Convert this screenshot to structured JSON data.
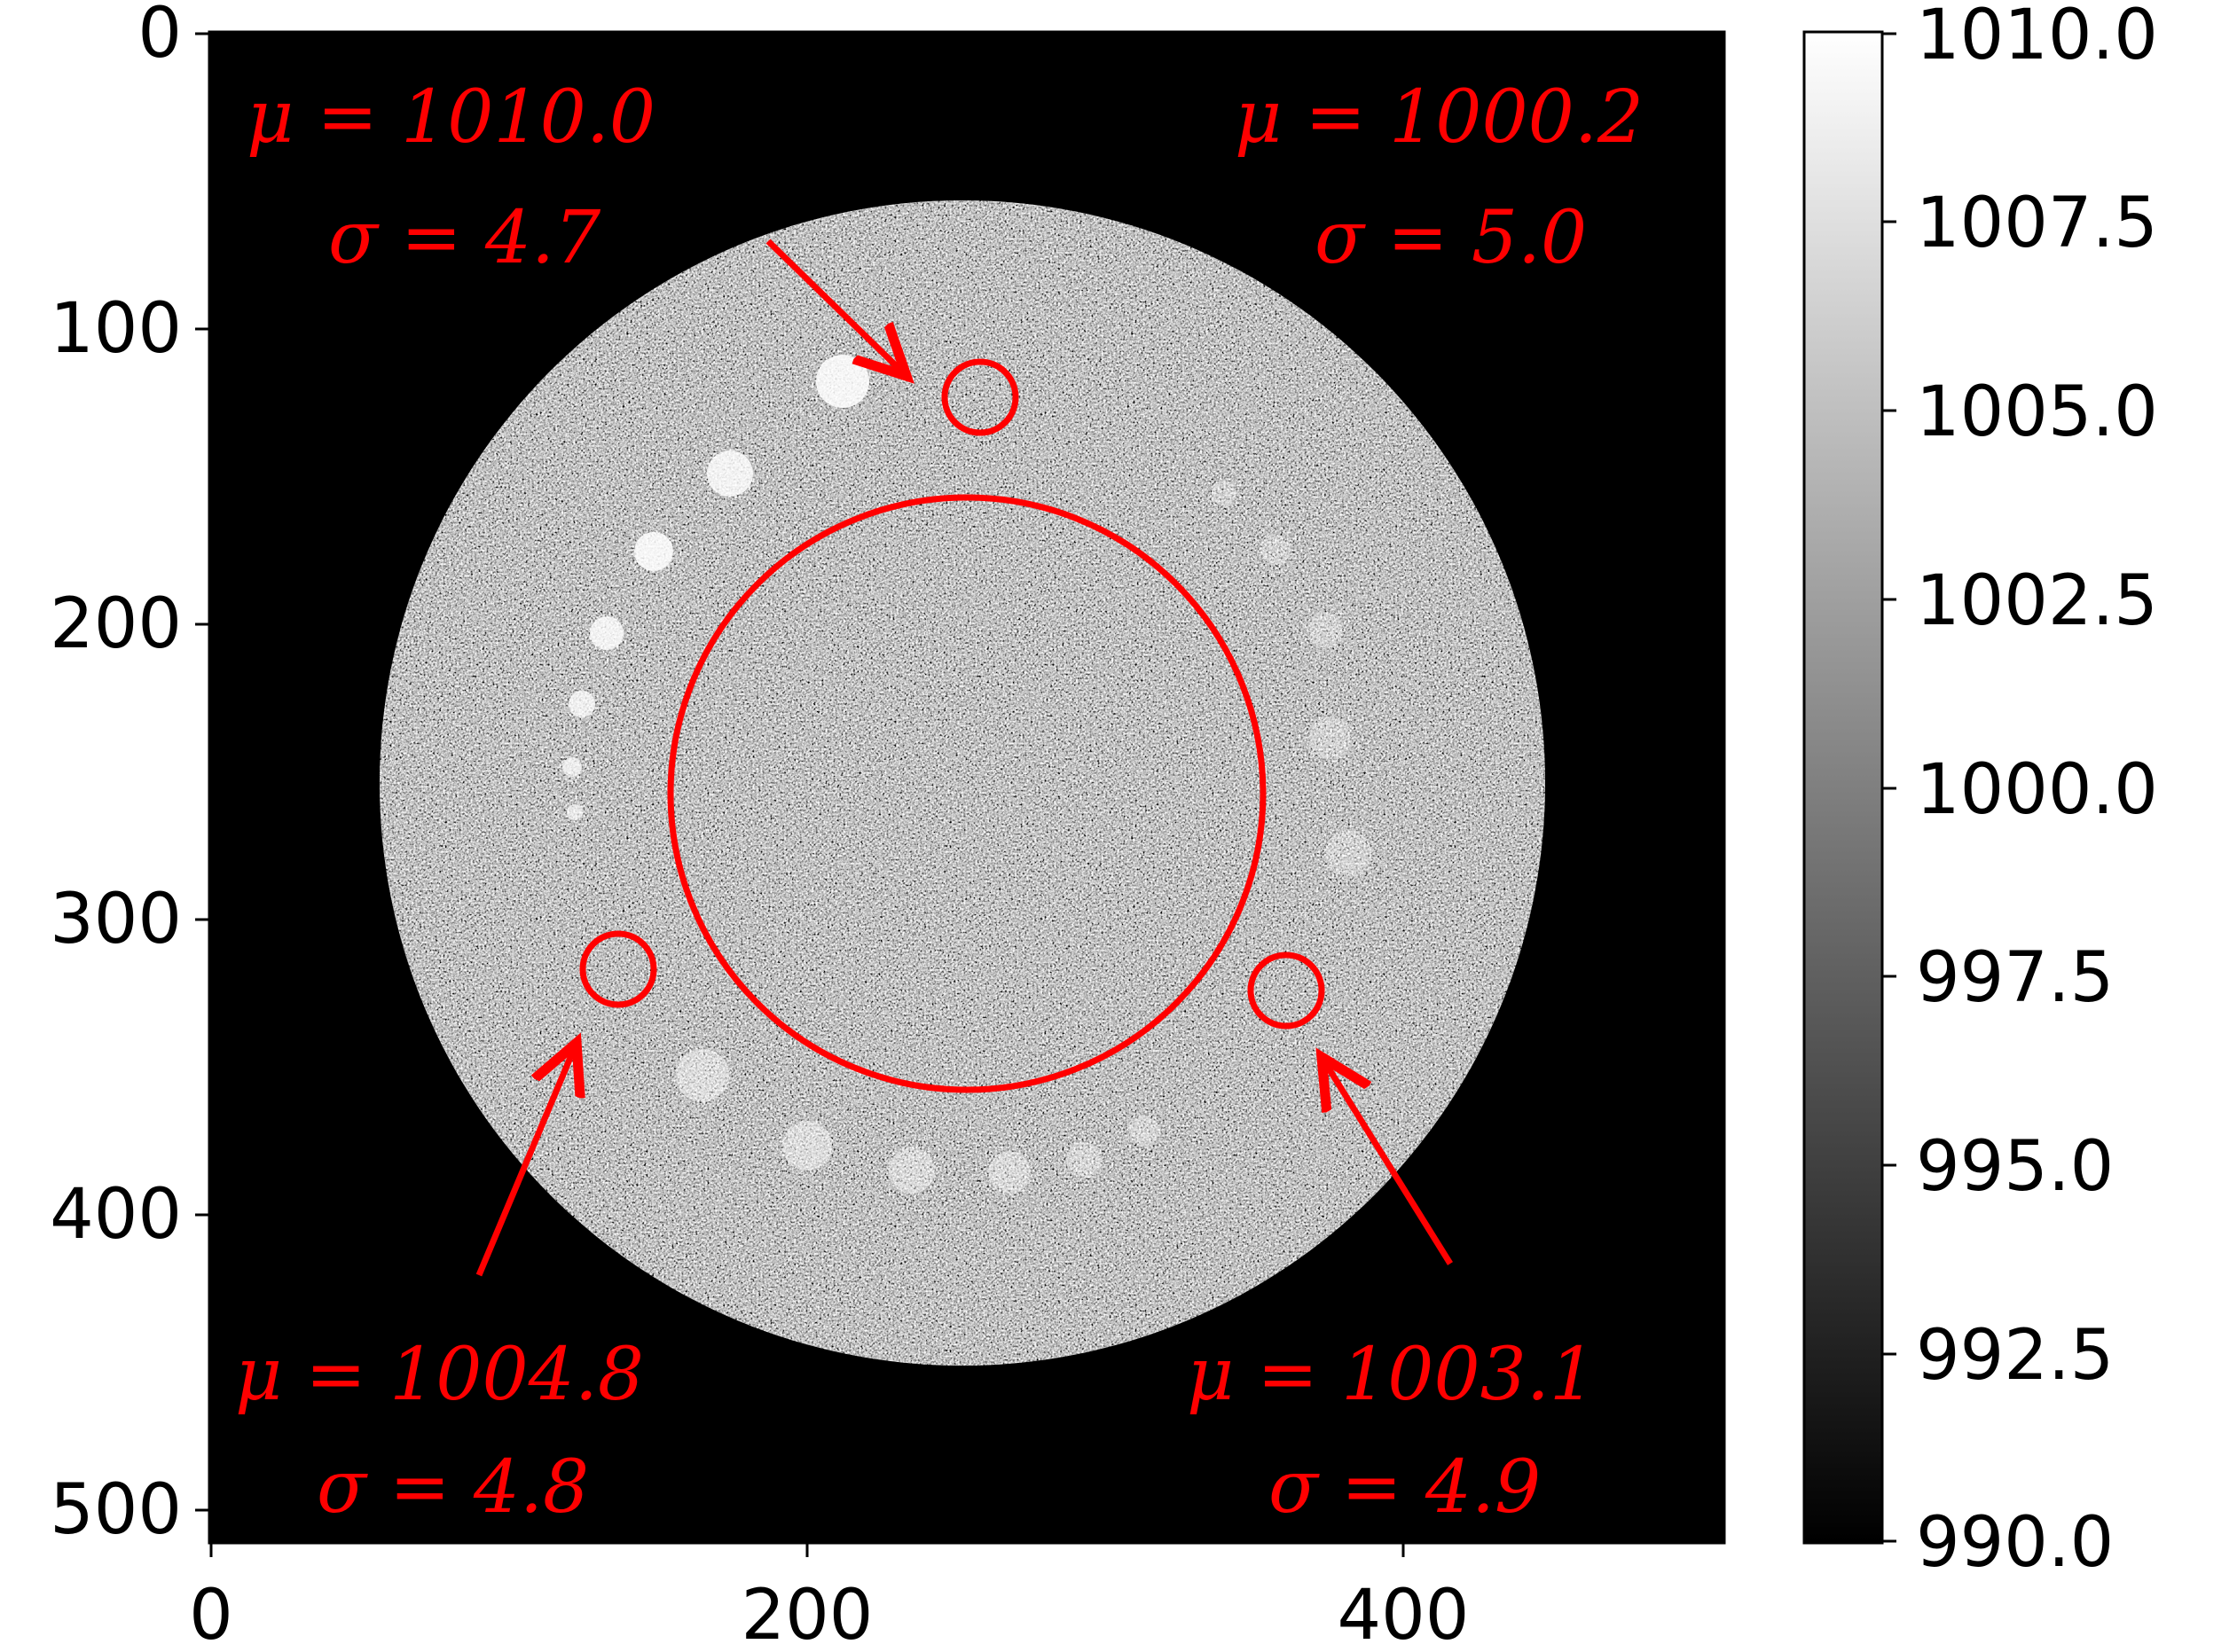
{
  "image": {
    "x_ticks": [
      "0",
      "200",
      "400"
    ],
    "y_ticks": [
      "0",
      "100",
      "200",
      "300",
      "400",
      "500"
    ],
    "x_range": [
      0,
      512
    ],
    "y_range": [
      0,
      512
    ],
    "colormap": "grayscale",
    "background_color": "#000000",
    "marker_color": "#ff0000"
  },
  "colorbar": {
    "ticks": [
      "1010.0",
      "1007.5",
      "1005.0",
      "1002.5",
      "1000.0",
      "997.5",
      "995.0",
      "992.5",
      "990.0"
    ],
    "range": [
      990.0,
      1010.0
    ]
  },
  "annotations": {
    "top_left": {
      "mu": "μ = 1010.0",
      "sigma": "σ = 4.7"
    },
    "top_right": {
      "mu": "μ = 1000.2",
      "sigma": "σ = 5.0"
    },
    "bottom_left": {
      "mu": "μ = 1004.8",
      "sigma": "σ = 4.8"
    },
    "bottom_right": {
      "mu": "μ = 1003.1",
      "sigma": "σ = 4.9"
    }
  }
}
